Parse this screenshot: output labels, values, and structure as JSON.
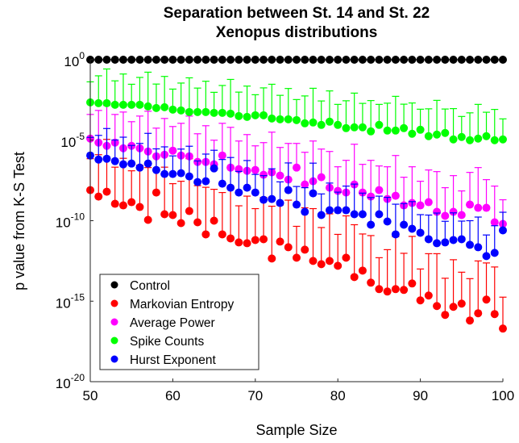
{
  "chart_data": {
    "type": "scatter",
    "title": [
      "Separation between St. 14 and St. 22",
      "Xenopus distributions"
    ],
    "xlabel": "Sample Size",
    "ylabel": "p value from K-S Test",
    "xlim": [
      50,
      100
    ],
    "ylim_log10": [
      -20,
      0
    ],
    "yscale": "log",
    "xticks": [
      50,
      60,
      70,
      80,
      90,
      100
    ],
    "yticks": [
      {
        "base": "10",
        "exp": "0",
        "value_log10": 0
      },
      {
        "base": "10",
        "exp": "-5",
        "value_log10": -5
      },
      {
        "base": "10",
        "exp": "-10",
        "value_log10": -10
      },
      {
        "base": "10",
        "exp": "-15",
        "value_log10": -15
      },
      {
        "base": "10",
        "exp": "-20",
        "value_log10": -20
      }
    ],
    "grid": false,
    "legend_position": "bottom-left",
    "x_start": 50,
    "x_step": 1,
    "series": [
      {
        "name": "Control",
        "color": "#000000",
        "log10_values": [
          0,
          0,
          0,
          0,
          0,
          0,
          0,
          0,
          0,
          0,
          0,
          0,
          0,
          0,
          0,
          0,
          0,
          0,
          0,
          0,
          0,
          0,
          0,
          0,
          0,
          0,
          0,
          0,
          0,
          0,
          0,
          0,
          0,
          0,
          0,
          0,
          0,
          0,
          0,
          0,
          0,
          0,
          0,
          0,
          0,
          0,
          0,
          0,
          0,
          0,
          0
        ],
        "err_upper_log10": 0
      },
      {
        "name": "Markovian Entropy",
        "color": "#ff0000",
        "log10_values": [
          -8.1,
          -8.5,
          -8.2,
          -8.95,
          -9.05,
          -8.85,
          -9.15,
          -9.95,
          -8.25,
          -9.6,
          -9.65,
          -10.15,
          -9.4,
          -10.1,
          -10.85,
          -10.0,
          -10.85,
          -11.1,
          -11.35,
          -11.4,
          -11.2,
          -11.15,
          -12.35,
          -11.3,
          -11.65,
          -12.3,
          -11.8,
          -12.5,
          -12.7,
          -12.5,
          -12.8,
          -12.3,
          -13.5,
          -13.1,
          -13.85,
          -14.25,
          -14.4,
          -14.25,
          -14.3,
          -13.9,
          -14.95,
          -14.65,
          -15.3,
          -15.85,
          -15.35,
          -15.15,
          -16.2,
          -15.75,
          -14.9,
          -15.8,
          -16.7
        ],
        "err_upper_log10": 2.6
      },
      {
        "name": "Average Power",
        "color": "#ff00ff",
        "log10_values": [
          -4.9,
          -5.15,
          -5.35,
          -5.15,
          -5.5,
          -5.35,
          -5.5,
          -5.7,
          -6.0,
          -5.9,
          -5.65,
          -5.95,
          -6.0,
          -6.35,
          -6.35,
          -6.5,
          -5.95,
          -6.7,
          -6.8,
          -6.9,
          -6.85,
          -7.15,
          -7.0,
          -7.2,
          -7.45,
          -6.7,
          -7.75,
          -7.55,
          -7.3,
          -7.95,
          -8.15,
          -8.25,
          -7.75,
          -8.25,
          -8.5,
          -8.1,
          -8.65,
          -8.45,
          -9.05,
          -8.9,
          -9.05,
          -8.85,
          -9.45,
          -9.7,
          -9.45,
          -9.65,
          -9.0,
          -9.2,
          -9.2,
          -10.1,
          -10.2
        ],
        "err_upper_log10": 2.0
      },
      {
        "name": "Spike Counts",
        "color": "#00ff00",
        "log10_values": [
          -2.65,
          -2.7,
          -2.7,
          -2.8,
          -2.8,
          -2.8,
          -2.8,
          -2.9,
          -3.0,
          -2.95,
          -3.1,
          -3.15,
          -3.25,
          -3.25,
          -3.25,
          -3.3,
          -3.3,
          -3.35,
          -3.5,
          -3.55,
          -3.45,
          -3.45,
          -3.65,
          -3.7,
          -3.7,
          -3.75,
          -3.95,
          -3.9,
          -4.05,
          -3.85,
          -4.05,
          -4.25,
          -4.2,
          -4.2,
          -4.45,
          -4.05,
          -4.4,
          -4.4,
          -4.25,
          -4.6,
          -4.35,
          -4.75,
          -4.65,
          -4.55,
          -4.95,
          -4.8,
          -5.0,
          -4.9,
          -4.75,
          -5.0,
          -4.95
        ],
        "err_upper_log10": 1.7
      },
      {
        "name": "Hurst Exponent",
        "color": "#0000ff",
        "log10_values": [
          -5.95,
          -6.2,
          -6.15,
          -6.3,
          -6.5,
          -6.45,
          -6.7,
          -6.45,
          -6.85,
          -7.1,
          -7.1,
          -7.05,
          -7.25,
          -7.6,
          -7.55,
          -6.75,
          -7.7,
          -7.95,
          -8.25,
          -7.95,
          -8.25,
          -8.7,
          -8.65,
          -8.9,
          -8.1,
          -9.0,
          -9.45,
          -8.3,
          -9.65,
          -9.35,
          -9.35,
          -9.35,
          -9.6,
          -9.6,
          -10.25,
          -9.6,
          -10.05,
          -10.85,
          -10.25,
          -10.5,
          -10.75,
          -11.15,
          -11.4,
          -11.35,
          -11.2,
          -11.15,
          -11.5,
          -11.65,
          -12.2,
          -12.0,
          -10.6
        ],
        "err_upper_log10": 1.5
      }
    ]
  }
}
